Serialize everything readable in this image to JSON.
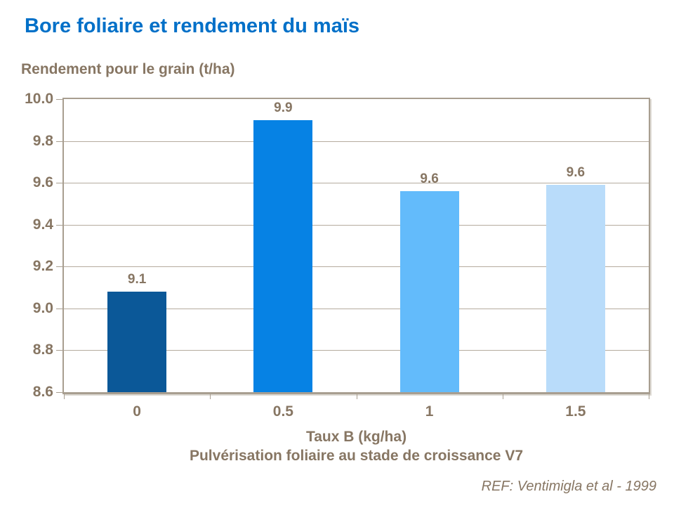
{
  "slide": {
    "ref": "REF: Ventimigla et al - 1999"
  },
  "chart_data": {
    "type": "bar",
    "title": "Bore foliaire et rendement du maïs",
    "ylabel": "Rendement pour le grain (t/ha)",
    "xlabel": "Taux B (kg/ha)",
    "xlabel_sub": "Pulvérisation foliaire au stade de croissance V7",
    "categories": [
      "0",
      "0.5",
      "1",
      "1.5"
    ],
    "values": [
      9.1,
      9.9,
      9.6,
      9.6
    ],
    "drawn_values": [
      9.08,
      9.9,
      9.56,
      9.59
    ],
    "bar_labels": [
      "9.1",
      "9.9",
      "9.6",
      "9.6"
    ],
    "bar_colors": [
      "#0B5898",
      "#0682E4",
      "#63BBFB",
      "#B9DCFA"
    ],
    "ylim": [
      8.6,
      10.0
    ],
    "ytick_step": 0.2,
    "yticks": [
      "10.0",
      "9.8",
      "9.6",
      "9.4",
      "9.2",
      "9.0",
      "8.8",
      "8.6"
    ],
    "grid": true,
    "legend": false,
    "colors": {
      "title": "#0070C8",
      "text": "#877663",
      "grid": "#B5AB9E",
      "axis": "#A89E90"
    }
  }
}
